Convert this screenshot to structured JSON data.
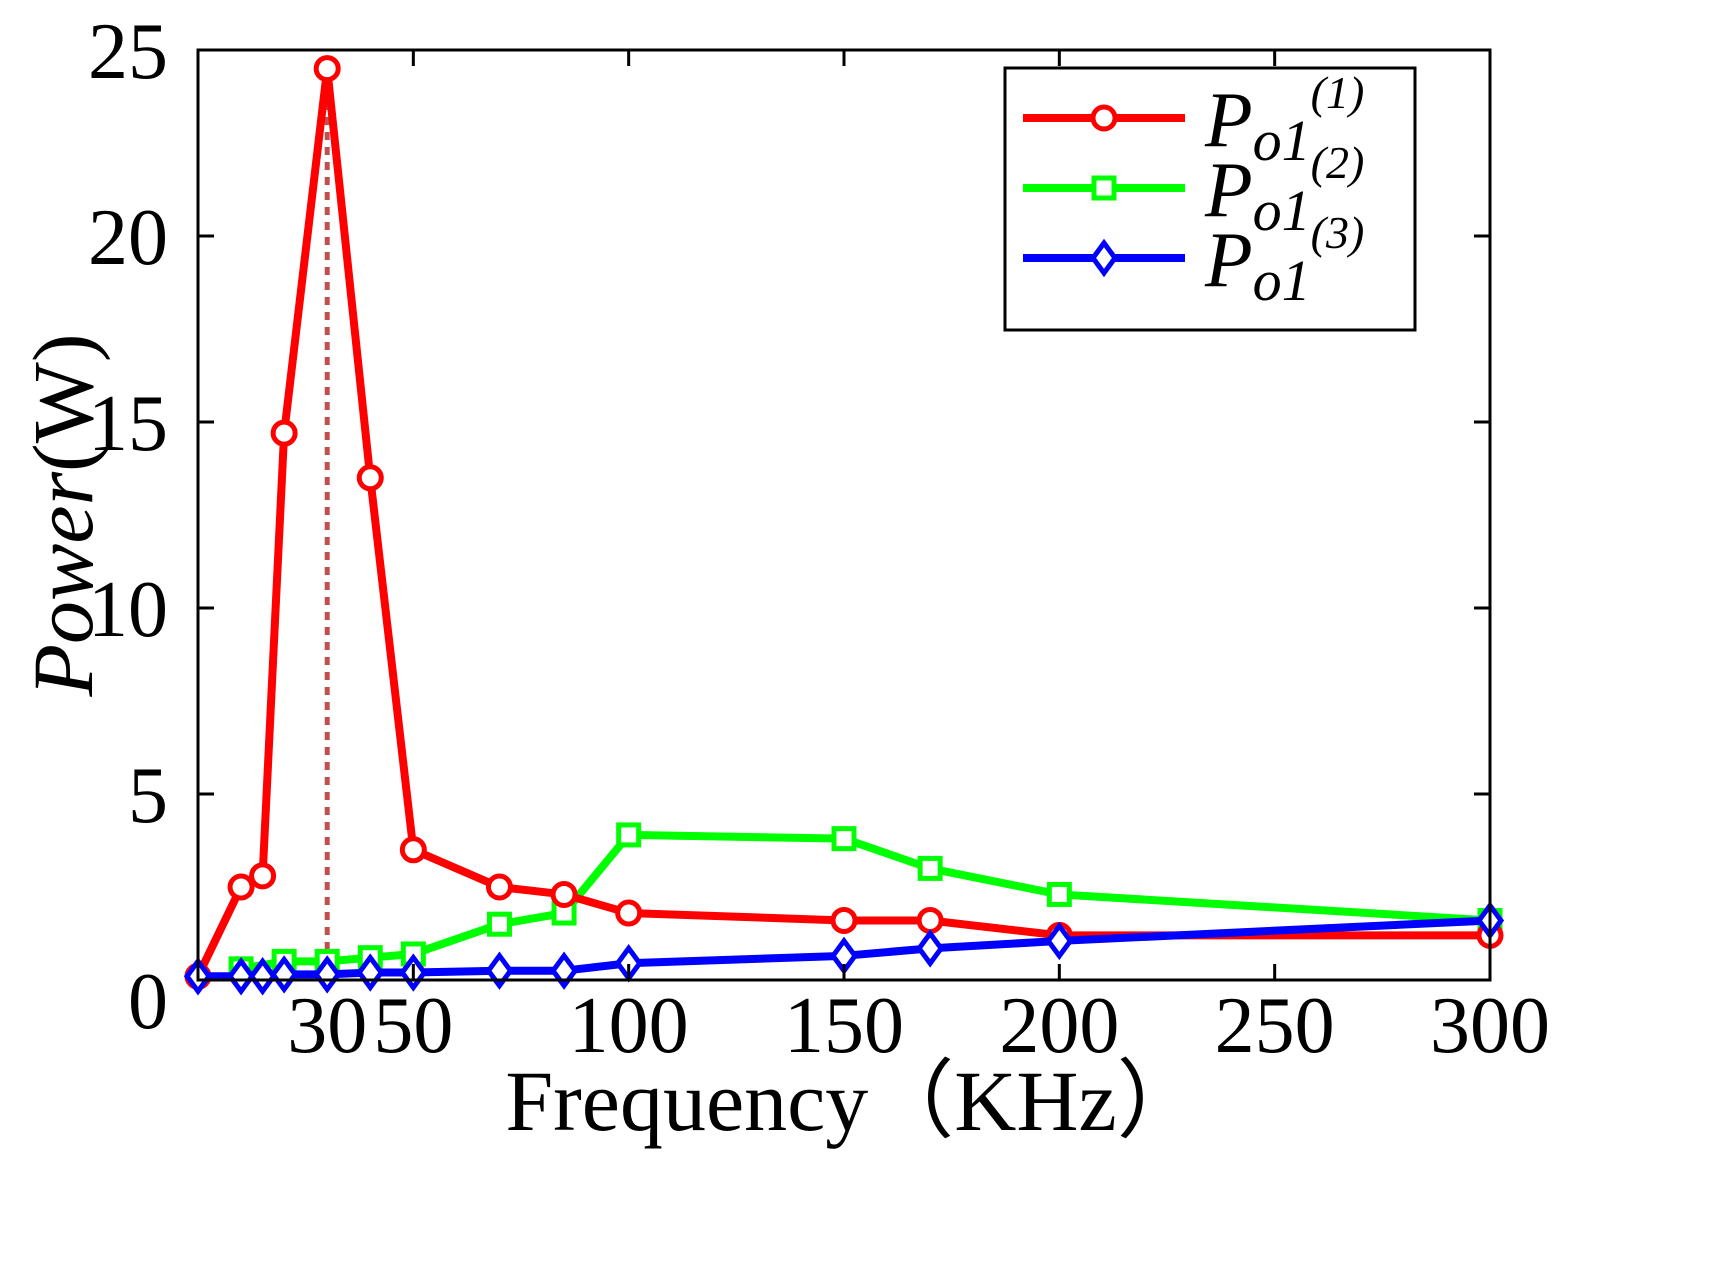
{
  "chart_data": {
    "type": "line",
    "title": "",
    "xlabel": "Frequency（KHz）",
    "ylabel": "Power(W)",
    "ylabel_parts": {
      "italic": "Power",
      "normal": "(W)"
    },
    "xlim": [
      0,
      300
    ],
    "ylim": [
      0,
      25
    ],
    "x_ticks": [
      0,
      50,
      100,
      150,
      200,
      250,
      300
    ],
    "x_tick_labels": [
      "50",
      "100",
      "150",
      "200",
      "250",
      "300"
    ],
    "extra_x_tick": {
      "value": 30,
      "label": "30"
    },
    "y_ticks": [
      0,
      5,
      10,
      15,
      20,
      25
    ],
    "y_tick_labels": [
      "0",
      "5",
      "10",
      "15",
      "20",
      "25"
    ],
    "grid": false,
    "legend_position": "top-right",
    "reference_line": {
      "x": 30,
      "y_top": 24.5,
      "color": "#c0504d",
      "style": "dotted"
    },
    "series": [
      {
        "name": "P_o1^(1)",
        "legend_base": "P",
        "legend_sub": "o1",
        "legend_sup": "(1)",
        "color": "#ff0000",
        "marker": "circle",
        "x": [
          0,
          10,
          15,
          20,
          30,
          40,
          50,
          70,
          85,
          100,
          150,
          170,
          200,
          300
        ],
        "y": [
          0.1,
          2.5,
          2.8,
          14.7,
          24.5,
          13.5,
          3.5,
          2.5,
          2.3,
          1.8,
          1.6,
          1.6,
          1.2,
          1.2
        ]
      },
      {
        "name": "P_o1^(2)",
        "legend_base": "P",
        "legend_sub": "o1",
        "legend_sup": "(2)",
        "color": "#00ff00",
        "marker": "square",
        "x": [
          10,
          20,
          30,
          40,
          50,
          70,
          85,
          100,
          150,
          170,
          200,
          300
        ],
        "y": [
          0.3,
          0.5,
          0.5,
          0.6,
          0.7,
          1.5,
          1.8,
          3.9,
          3.8,
          3.0,
          2.3,
          1.6
        ]
      },
      {
        "name": "P_o1^(3)",
        "legend_base": "P",
        "legend_sub": "o1",
        "legend_sup": "(3)",
        "color": "#0000ff",
        "marker": "diamond",
        "x": [
          0,
          10,
          15,
          20,
          30,
          40,
          50,
          70,
          85,
          100,
          150,
          170,
          200,
          300
        ],
        "y": [
          0.1,
          0.1,
          0.1,
          0.15,
          0.15,
          0.2,
          0.2,
          0.25,
          0.25,
          0.45,
          0.65,
          0.85,
          1.05,
          1.6
        ]
      }
    ]
  }
}
